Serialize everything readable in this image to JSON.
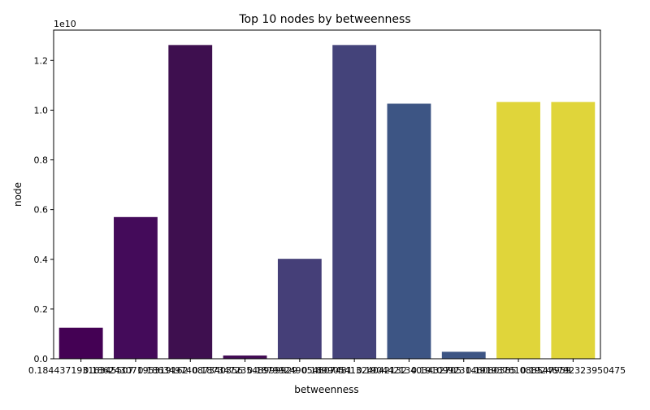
{
  "chart_data": {
    "type": "bar",
    "title": "Top 10 nodes by betweenness",
    "xlabel": "betweenness",
    "ylabel": "node",
    "offset_label": "1e10",
    "categories": [
      "0.18443719316345507",
      "0.18624307195319162",
      "0.18634974087340356",
      "0.18734723548999929",
      "0.18799249054807481",
      "0.18990541324042132",
      "0.19044213403432705",
      "0.19109923146080385",
      "0.19193761088547959",
      "0.19246792323950475"
    ],
    "values": [
      1.25,
      5.7,
      12.62,
      0.13,
      4.02,
      12.62,
      10.26,
      0.28,
      10.33,
      10.33
    ],
    "colors": [
      "#440154",
      "#440b5a",
      "#3e0f4f",
      "#430c55",
      "#453f78",
      "#44437a",
      "#3d5584",
      "#3d5584",
      "#e0d53a",
      "#e0d53a"
    ],
    "yticks": [
      "0.0",
      "0.2",
      "0.4",
      "0.6",
      "0.8",
      "1.0",
      "1.2"
    ],
    "ylim": [
      0,
      13.22
    ],
    "grid": false,
    "legend": "none"
  }
}
